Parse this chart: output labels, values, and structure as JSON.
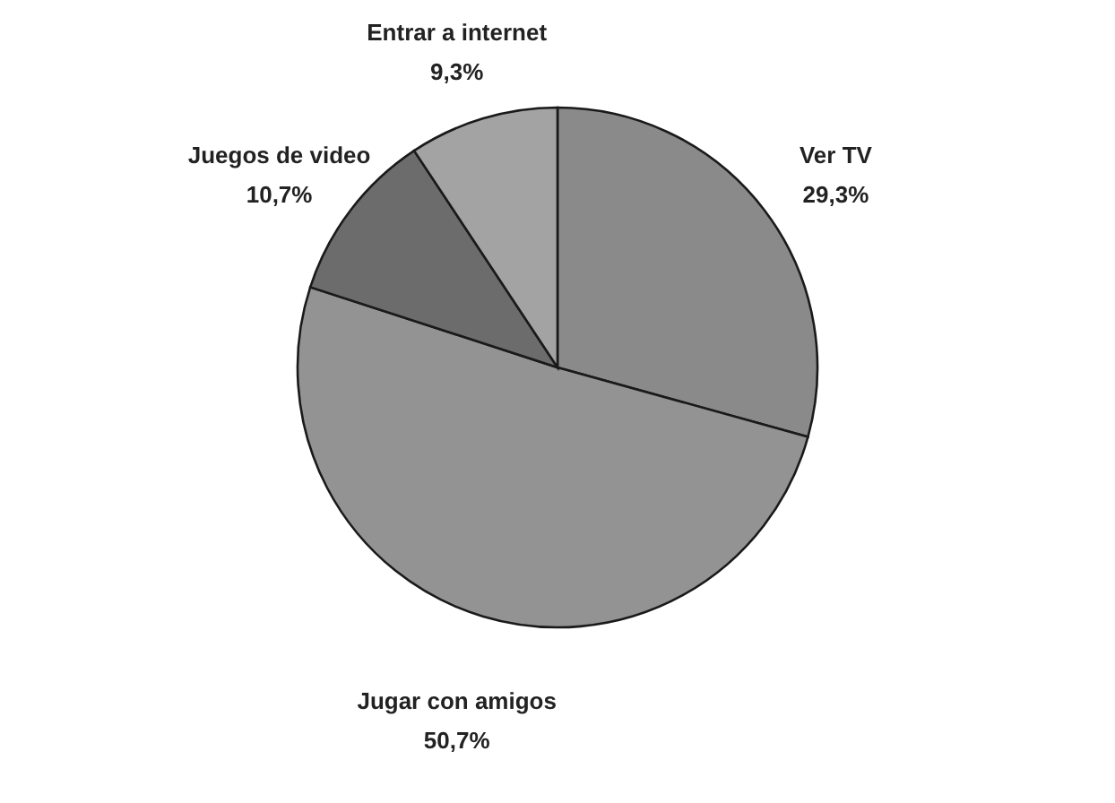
{
  "chart_data": {
    "type": "pie",
    "categories": [
      "Ver TV",
      "Jugar con amigos",
      "Juegos de video",
      "Entrar a internet"
    ],
    "values": [
      29.3,
      50.7,
      10.7,
      9.3
    ],
    "value_labels": [
      "29,3%",
      "50,7%",
      "10,7%",
      "9,3%"
    ],
    "colors": [
      "#8a8a8a",
      "#939393",
      "#6c6c6c",
      "#a3a3a3"
    ]
  }
}
